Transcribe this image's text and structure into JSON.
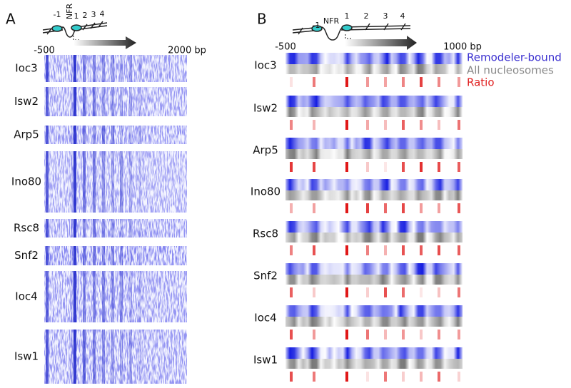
{
  "panel_a": {
    "label": "A",
    "schematic": {
      "labels": [
        "-1",
        "NFR",
        "1",
        "2",
        "3",
        "4"
      ]
    },
    "axis": {
      "start": "-500",
      "end": "2000 bp"
    },
    "rows": [
      "Ioc3",
      "Isw2",
      "Arp5",
      "Ino80",
      "Rsc8",
      "Snf2",
      "Ioc4",
      "Isw1"
    ]
  },
  "panel_b": {
    "label": "B",
    "schematic": {
      "labels": [
        "-1",
        "NFR",
        "1",
        "2",
        "3",
        "4"
      ]
    },
    "axis": {
      "start": "-500",
      "end": "1000 bp"
    },
    "legend": [
      "Remodeler-bound",
      "All nucleosomes",
      "Ratio"
    ],
    "rows": [
      "Ioc3",
      "Isw2",
      "Arp5",
      "Ino80",
      "Rsc8",
      "Snf2",
      "Ioc4",
      "Isw1"
    ]
  }
}
